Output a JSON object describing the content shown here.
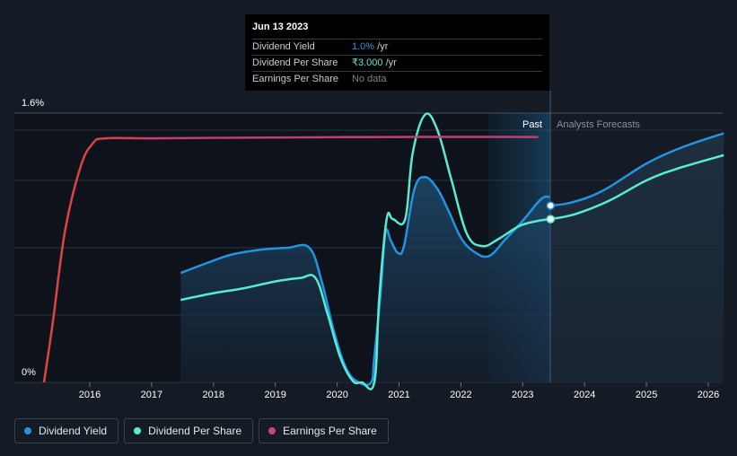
{
  "chart_data": {
    "type": "line",
    "x_ticks": [
      "2016",
      "2017",
      "2018",
      "2019",
      "2020",
      "2021",
      "2022",
      "2023",
      "2024",
      "2025",
      "2026"
    ],
    "y_ticks": [
      "0%",
      "1.6%"
    ],
    "ylim": [
      0,
      1.6
    ],
    "zones": {
      "past_label": "Past",
      "forecast_label": "Analysts Forecasts"
    },
    "series": [
      {
        "name": "Dividend Yield",
        "color": "#2394df",
        "points": [
          [
            2017.47,
            0.65
          ],
          [
            2017.9,
            0.71
          ],
          [
            2018.3,
            0.76
          ],
          [
            2018.8,
            0.79
          ],
          [
            2019.2,
            0.8
          ],
          [
            2019.55,
            0.8
          ],
          [
            2019.75,
            0.6
          ],
          [
            2019.95,
            0.3
          ],
          [
            2020.15,
            0.08
          ],
          [
            2020.35,
            0.0
          ],
          [
            2020.55,
            0.0
          ],
          [
            2020.6,
            0.15
          ],
          [
            2020.7,
            0.52
          ],
          [
            2020.78,
            0.89
          ],
          [
            2020.87,
            0.84
          ],
          [
            2020.98,
            0.77
          ],
          [
            2021.08,
            0.81
          ],
          [
            2021.25,
            1.15
          ],
          [
            2021.42,
            1.22
          ],
          [
            2021.62,
            1.15
          ],
          [
            2021.8,
            1.02
          ],
          [
            2022.0,
            0.86
          ],
          [
            2022.2,
            0.78
          ],
          [
            2022.45,
            0.75
          ],
          [
            2022.72,
            0.85
          ],
          [
            2023.0,
            0.96
          ],
          [
            2023.3,
            1.09
          ],
          [
            2023.45,
            1.1
          ]
        ],
        "forecast": [
          [
            2023.45,
            1.05
          ],
          [
            2023.8,
            1.07
          ],
          [
            2024.3,
            1.14
          ],
          [
            2025.0,
            1.3
          ],
          [
            2025.6,
            1.4
          ],
          [
            2026.25,
            1.48
          ]
        ]
      },
      {
        "name": "Dividend Per Share",
        "color": "#59ead2",
        "points": [
          [
            2017.47,
            0.49
          ],
          [
            2018.0,
            0.53
          ],
          [
            2018.5,
            0.56
          ],
          [
            2019.0,
            0.6
          ],
          [
            2019.4,
            0.62
          ],
          [
            2019.65,
            0.62
          ],
          [
            2019.85,
            0.4
          ],
          [
            2020.05,
            0.15
          ],
          [
            2020.25,
            0.01
          ],
          [
            2020.4,
            0.0
          ],
          [
            2020.6,
            0.0
          ],
          [
            2020.68,
            0.5
          ],
          [
            2020.8,
            0.97
          ],
          [
            2020.9,
            0.97
          ],
          [
            2021.1,
            0.97
          ],
          [
            2021.22,
            1.36
          ],
          [
            2021.42,
            1.59
          ],
          [
            2021.62,
            1.5
          ],
          [
            2021.85,
            1.2
          ],
          [
            2022.1,
            0.88
          ],
          [
            2022.35,
            0.81
          ],
          [
            2022.6,
            0.85
          ],
          [
            2022.95,
            0.93
          ],
          [
            2023.25,
            0.96
          ],
          [
            2023.45,
            0.97
          ]
        ],
        "forecast": [
          [
            2023.45,
            0.97
          ],
          [
            2023.85,
            1.0
          ],
          [
            2024.4,
            1.08
          ],
          [
            2025.0,
            1.2
          ],
          [
            2025.5,
            1.27
          ],
          [
            2026.25,
            1.35
          ]
        ]
      },
      {
        "name": "Earnings Per Share",
        "color_start": "#e0453c",
        "color_end": "#c43d74",
        "points": [
          [
            2015.26,
            0.0
          ],
          [
            2015.4,
            0.35
          ],
          [
            2015.6,
            0.9
          ],
          [
            2015.85,
            1.28
          ],
          [
            2016.05,
            1.42
          ],
          [
            2016.25,
            1.45
          ],
          [
            2017.0,
            1.45
          ],
          [
            2018.0,
            1.453
          ],
          [
            2019.0,
            1.455
          ],
          [
            2020.0,
            1.457
          ],
          [
            2021.0,
            1.458
          ],
          [
            2022.0,
            1.459
          ],
          [
            2023.25,
            1.458
          ]
        ]
      }
    ],
    "tooltip": {
      "date": "Jun 13 2023",
      "rows": [
        {
          "label": "Dividend Yield",
          "value": "1.0%",
          "unit": " /yr"
        },
        {
          "label": "Dividend Per Share",
          "value": "₹3.000",
          "unit": " /yr"
        },
        {
          "label": "Earnings Per Share",
          "value": "No data",
          "unit": ""
        }
      ]
    },
    "legend": [
      {
        "label": "Dividend Yield",
        "color": "#2394df"
      },
      {
        "label": "Dividend Per Share",
        "color": "#59ead2"
      },
      {
        "label": "Earnings Per Share",
        "color": "#cf3f82"
      }
    ]
  }
}
